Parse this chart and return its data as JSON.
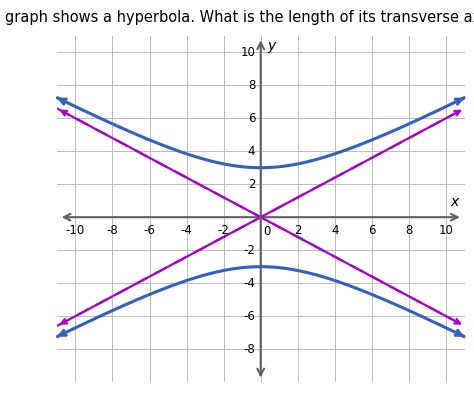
{
  "title": "The graph shows a hyperbola. What is the length of its transverse axis?",
  "title_fontsize": 10.5,
  "xlim": [
    -11,
    11
  ],
  "ylim": [
    -10,
    11
  ],
  "xticks": [
    -10,
    -8,
    -6,
    -4,
    -2,
    0,
    2,
    4,
    6,
    8,
    10
  ],
  "yticks": [
    -8,
    -6,
    -4,
    -2,
    2,
    4,
    6,
    8,
    10
  ],
  "hyperbola_a": 3,
  "hyperbola_b": 5,
  "hyperbola_color": "#3060C0",
  "asymptote_color": "#AA00CC",
  "axis_color": "#606060",
  "grid_color": "#BBBBBB",
  "background_color": "#FFFFFF",
  "hyperbola_linewidth": 2.2,
  "asymptote_linewidth": 1.6,
  "xlabel": "x",
  "ylabel": "y",
  "tick_fontsize": 8.5
}
